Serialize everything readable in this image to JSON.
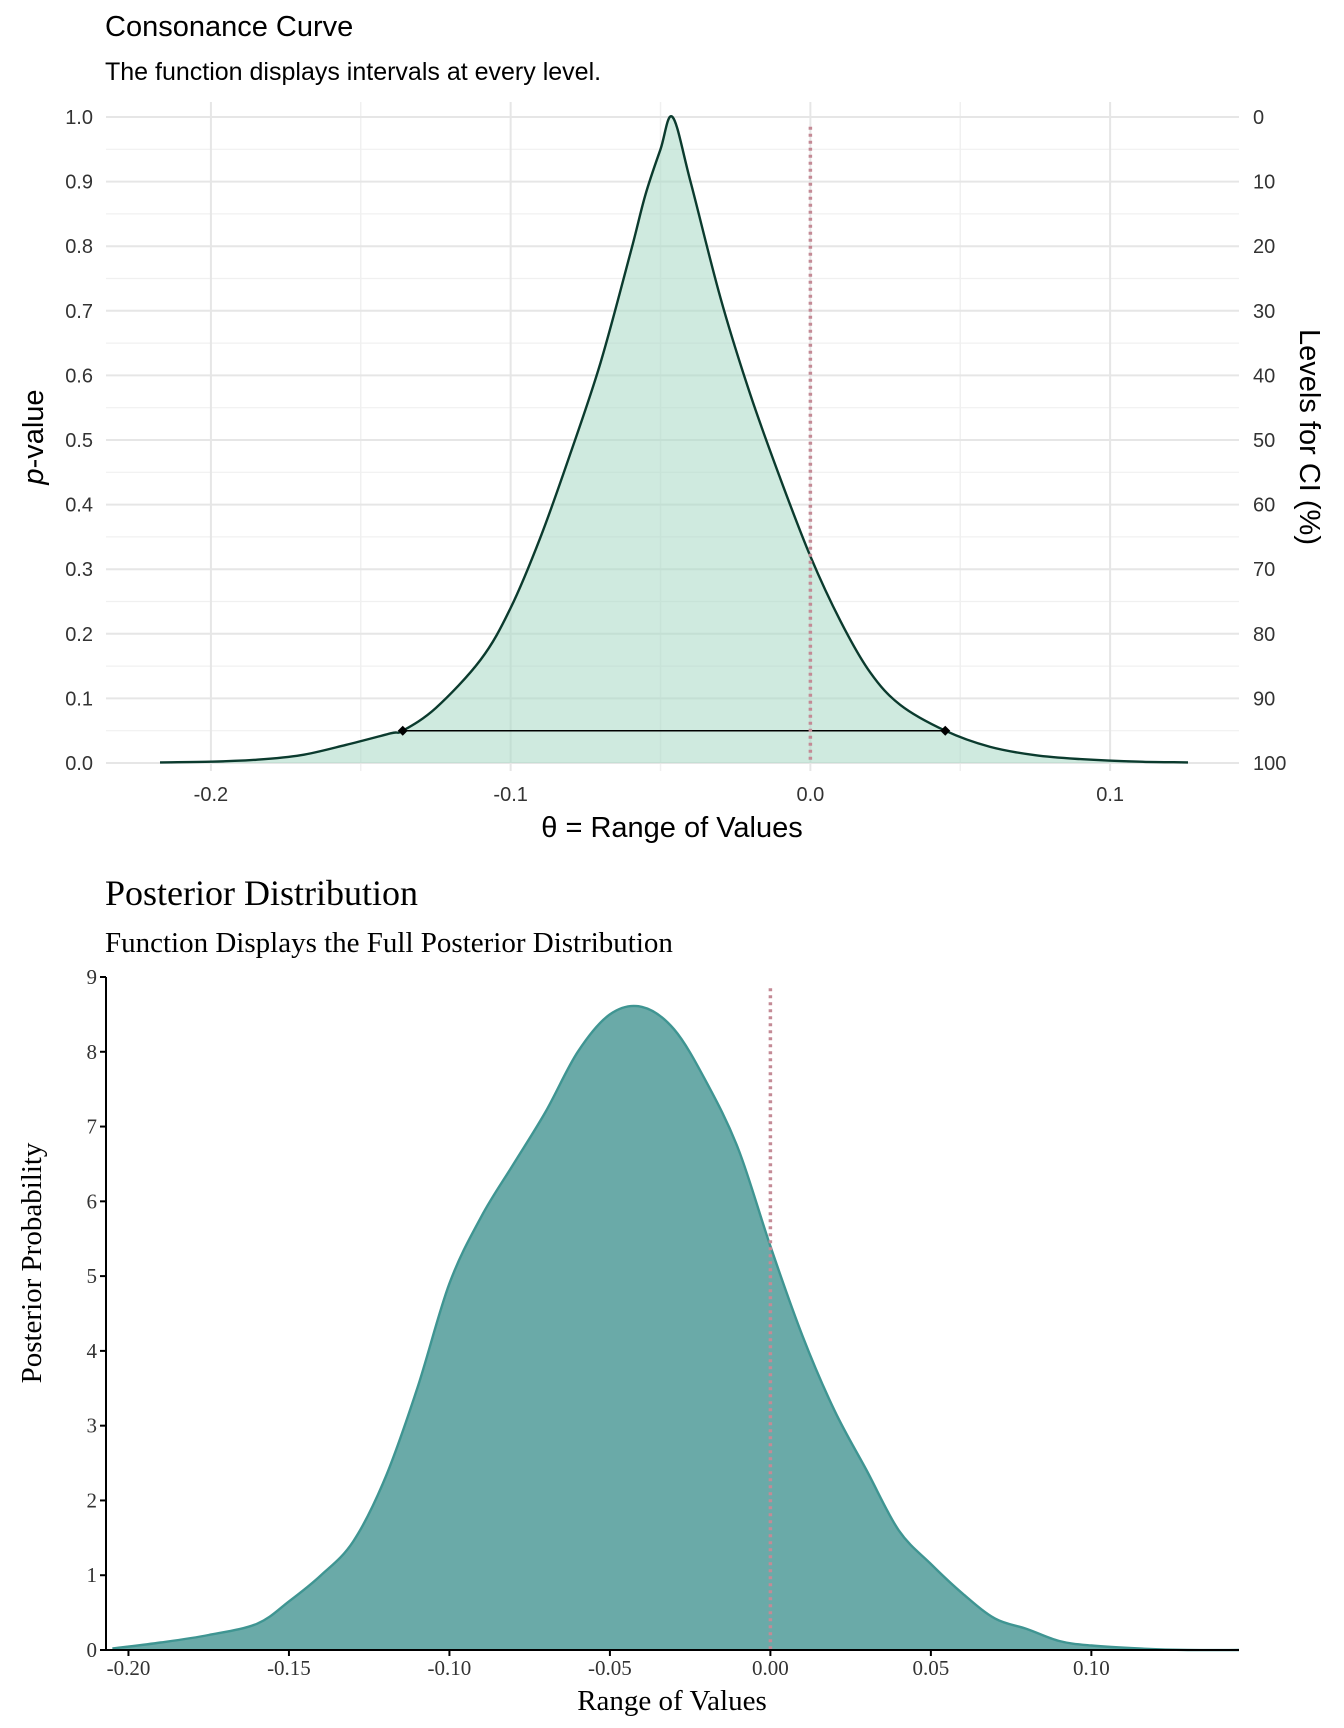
{
  "chart_data": [
    {
      "type": "area",
      "title": "Consonance Curve",
      "subtitle": "The function displays intervals at every level.",
      "xlabel": "θ =  Range of Values",
      "ylabel_italic": "p",
      "ylabel_rest": "-value",
      "y2label": "Levels for CI (%)",
      "xlim": [
        -0.235,
        0.143
      ],
      "ylim": [
        0,
        1.0
      ],
      "x_ticks": [
        {
          "value": -0.2,
          "label": "-0.2"
        },
        {
          "value": -0.1,
          "label": "-0.1"
        },
        {
          "value": 0.0,
          "label": "0.0"
        },
        {
          "value": 0.1,
          "label": "0.1"
        }
      ],
      "y_ticks": [
        {
          "value": 0.0,
          "label": "0.0"
        },
        {
          "value": 0.1,
          "label": "0.1"
        },
        {
          "value": 0.2,
          "label": "0.2"
        },
        {
          "value": 0.3,
          "label": "0.3"
        },
        {
          "value": 0.4,
          "label": "0.4"
        },
        {
          "value": 0.5,
          "label": "0.5"
        },
        {
          "value": 0.6,
          "label": "0.6"
        },
        {
          "value": 0.7,
          "label": "0.7"
        },
        {
          "value": 0.8,
          "label": "0.8"
        },
        {
          "value": 0.9,
          "label": "0.9"
        },
        {
          "value": 1.0,
          "label": "1.0"
        }
      ],
      "y2_ticks": [
        {
          "value": 1.0,
          "label": "0"
        },
        {
          "value": 0.9,
          "label": "10"
        },
        {
          "value": 0.8,
          "label": "20"
        },
        {
          "value": 0.7,
          "label": "30"
        },
        {
          "value": 0.6,
          "label": "40"
        },
        {
          "value": 0.5,
          "label": "50"
        },
        {
          "value": 0.4,
          "label": "60"
        },
        {
          "value": 0.3,
          "label": "70"
        },
        {
          "value": 0.2,
          "label": "80"
        },
        {
          "value": 0.1,
          "label": "90"
        },
        {
          "value": 0.0,
          "label": "100"
        }
      ],
      "curve": {
        "x": [
          -0.217,
          -0.2,
          -0.185,
          -0.17,
          -0.155,
          -0.14,
          -0.136,
          -0.125,
          -0.11,
          -0.1,
          -0.09,
          -0.08,
          -0.07,
          -0.06,
          -0.055,
          -0.05,
          -0.046,
          -0.04,
          -0.03,
          -0.02,
          -0.01,
          0.0,
          0.01,
          0.02,
          0.03,
          0.045,
          0.06,
          0.075,
          0.09,
          0.11,
          0.126
        ],
        "y": [
          0.001,
          0.002,
          0.005,
          0.012,
          0.028,
          0.046,
          0.05,
          0.085,
          0.16,
          0.24,
          0.35,
          0.48,
          0.62,
          0.79,
          0.88,
          0.95,
          1.0,
          0.9,
          0.72,
          0.57,
          0.44,
          0.32,
          0.22,
          0.14,
          0.09,
          0.05,
          0.025,
          0.012,
          0.006,
          0.002,
          0.001
        ]
      },
      "interval_95": {
        "lower": -0.136,
        "upper": 0.045,
        "p": 0.05
      },
      "reference_line_x": 0.0,
      "colors": {
        "fill": "#a8d8c4",
        "line": "#0b3b2e",
        "reference": "#c48a95",
        "grid": "#e6e6e6"
      }
    },
    {
      "type": "area",
      "title": "Posterior Distribution",
      "subtitle": "Function Displays the Full Posterior Distribution",
      "xlabel": "Range of Values",
      "ylabel": "Posterior Probability",
      "xlim": [
        -0.207,
        0.146
      ],
      "ylim": [
        0,
        9
      ],
      "x_ticks": [
        {
          "value": -0.2,
          "label": "-0.20"
        },
        {
          "value": -0.15,
          "label": "-0.15"
        },
        {
          "value": -0.1,
          "label": "-0.10"
        },
        {
          "value": -0.05,
          "label": "-0.05"
        },
        {
          "value": 0.0,
          "label": "0.00"
        },
        {
          "value": 0.05,
          "label": "0.05"
        },
        {
          "value": 0.1,
          "label": "0.10"
        }
      ],
      "y_ticks": [
        {
          "value": 0,
          "label": "0"
        },
        {
          "value": 1,
          "label": "1"
        },
        {
          "value": 2,
          "label": "2"
        },
        {
          "value": 3,
          "label": "3"
        },
        {
          "value": 4,
          "label": "4"
        },
        {
          "value": 5,
          "label": "5"
        },
        {
          "value": 6,
          "label": "6"
        },
        {
          "value": 7,
          "label": "7"
        },
        {
          "value": 8,
          "label": "8"
        },
        {
          "value": 9,
          "label": "9"
        }
      ],
      "density": {
        "x": [
          -0.205,
          -0.19,
          -0.175,
          -0.16,
          -0.15,
          -0.14,
          -0.13,
          -0.12,
          -0.11,
          -0.1,
          -0.09,
          -0.08,
          -0.07,
          -0.06,
          -0.05,
          -0.04,
          -0.03,
          -0.02,
          -0.01,
          0.0,
          0.01,
          0.02,
          0.03,
          0.04,
          0.05,
          0.06,
          0.07,
          0.08,
          0.09,
          0.1,
          0.115,
          0.13,
          0.146
        ],
        "y": [
          0.02,
          0.1,
          0.2,
          0.35,
          0.65,
          1.0,
          1.45,
          2.3,
          3.5,
          4.9,
          5.8,
          6.5,
          7.2,
          8.0,
          8.5,
          8.6,
          8.3,
          7.6,
          6.7,
          5.4,
          4.2,
          3.2,
          2.4,
          1.6,
          1.15,
          0.75,
          0.42,
          0.28,
          0.12,
          0.06,
          0.02,
          0.0,
          0.0
        ]
      },
      "reference_line_x": 0.0,
      "colors": {
        "fill": "#6aaaa8",
        "line": "#3f9592",
        "reference": "#c48a95",
        "axis": "#000000"
      }
    }
  ]
}
